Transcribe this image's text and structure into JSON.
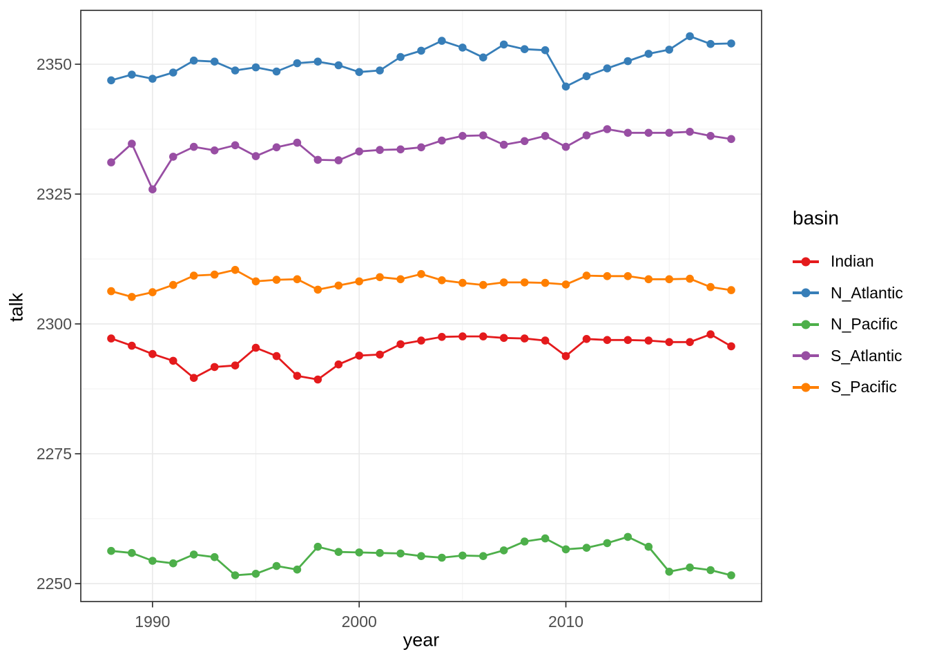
{
  "chart_data": {
    "type": "line",
    "title": "",
    "xlabel": "year",
    "ylabel": "talk",
    "x": [
      1988,
      1989,
      1990,
      1991,
      1992,
      1993,
      1994,
      1995,
      1996,
      1997,
      1998,
      1999,
      2000,
      2001,
      2002,
      2003,
      2004,
      2005,
      2006,
      2007,
      2008,
      2009,
      2010,
      2011,
      2012,
      2013,
      2014,
      2015,
      2016,
      2017,
      2018
    ],
    "series": [
      {
        "name": "Indian",
        "color": "#E41A1C",
        "values": [
          2297.2,
          2295.8,
          2294.2,
          2292.9,
          2289.6,
          2291.7,
          2292.0,
          2295.4,
          2293.8,
          2290.0,
          2289.3,
          2292.2,
          2293.9,
          2294.1,
          2296.1,
          2296.8,
          2297.5,
          2297.6,
          2297.6,
          2297.3,
          2297.2,
          2296.8,
          2293.8,
          2297.1,
          2296.9,
          2296.9,
          2296.8,
          2296.5,
          2296.5,
          2298.0,
          2295.7
        ]
      },
      {
        "name": "N_Atlantic",
        "color": "#377EB8",
        "values": [
          2346.9,
          2348.0,
          2347.2,
          2348.4,
          2350.7,
          2350.5,
          2348.8,
          2349.4,
          2348.6,
          2350.2,
          2350.5,
          2349.8,
          2348.5,
          2348.8,
          2351.4,
          2352.6,
          2354.5,
          2353.2,
          2351.3,
          2353.8,
          2352.9,
          2352.7,
          2345.7,
          2347.7,
          2349.2,
          2350.6,
          2352.0,
          2352.8,
          2355.4,
          2353.9,
          2354.0
        ]
      },
      {
        "name": "N_Pacific",
        "color": "#4DAF4A",
        "values": [
          2256.3,
          2255.9,
          2254.4,
          2253.9,
          2255.6,
          2255.1,
          2251.6,
          2251.9,
          2253.4,
          2252.7,
          2257.1,
          2256.1,
          2256.0,
          2255.9,
          2255.8,
          2255.3,
          2255.0,
          2255.4,
          2255.3,
          2256.4,
          2258.1,
          2258.7,
          2256.6,
          2256.9,
          2257.8,
          2259.0,
          2257.1,
          2252.3,
          2253.1,
          2252.6,
          2251.6
        ]
      },
      {
        "name": "S_Atlantic",
        "color": "#984EA3",
        "values": [
          2331.1,
          2334.7,
          2325.9,
          2332.2,
          2334.1,
          2333.4,
          2334.4,
          2332.3,
          2334.0,
          2334.9,
          2331.6,
          2331.5,
          2333.2,
          2333.5,
          2333.6,
          2334.0,
          2335.3,
          2336.2,
          2336.3,
          2334.5,
          2335.2,
          2336.2,
          2334.1,
          2336.3,
          2337.5,
          2336.8,
          2336.8,
          2336.8,
          2337.0,
          2336.2,
          2335.6
        ]
      },
      {
        "name": "S_Pacific",
        "color": "#FF7F00",
        "values": [
          2306.3,
          2305.2,
          2306.1,
          2307.5,
          2309.3,
          2309.5,
          2310.4,
          2308.2,
          2308.5,
          2308.6,
          2306.6,
          2307.4,
          2308.2,
          2309.0,
          2308.6,
          2309.6,
          2308.4,
          2307.9,
          2307.5,
          2308.0,
          2308.0,
          2307.9,
          2307.6,
          2309.3,
          2309.2,
          2309.2,
          2308.6,
          2308.6,
          2308.7,
          2307.1,
          2306.5
        ]
      }
    ],
    "x_ticks": [
      1990,
      2000,
      2010
    ],
    "y_ticks": [
      2250,
      2275,
      2300,
      2325,
      2350
    ],
    "x_minor_gridlines": [
      1995,
      2005,
      2015
    ],
    "y_minor_gridlines": [
      2262.5,
      2287.5,
      2312.5,
      2337.5
    ],
    "xlim": [
      1986.53,
      2019.47
    ],
    "ylim": [
      2246.55,
      2360.37
    ],
    "grid": true,
    "marker": "circle",
    "legend": {
      "title": "basin",
      "position": "right"
    }
  },
  "colors": {
    "background": "#ffffff",
    "panel_border": "#333333",
    "grid_major": "#e9e9e9",
    "grid_minor": "#f0f0f0",
    "tick_mark": "#333333",
    "tick_label": "#4d4d4d",
    "axis_title": "#000000"
  }
}
